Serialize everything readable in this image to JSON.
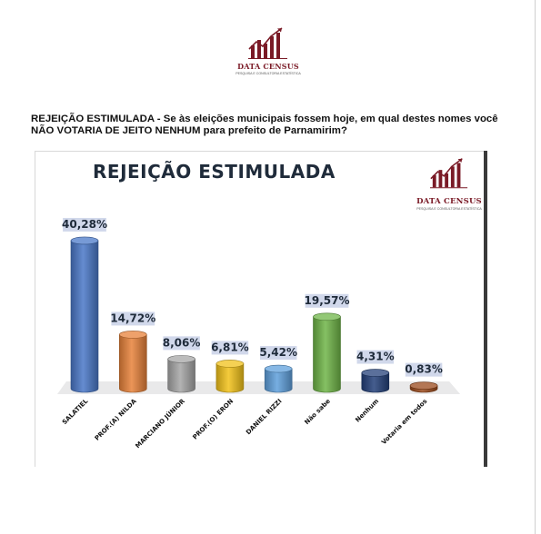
{
  "header": {
    "logo_name": "DATA CENSUS",
    "logo_tagline": "PESQUISA E CONSULTORIA ESTATÍSTICA",
    "logo_colors": {
      "bars": "#7a1a26",
      "arrow": "#7a1a26"
    }
  },
  "question": {
    "text": "REJEIÇÃO ESTIMULADA - Se às eleições municipais fossem hoje, em qual destes nomes você NÃO VOTARIA DE JEITO NENHUM para prefeito de Parnamirim?"
  },
  "chart_data": {
    "type": "bar",
    "title": "REJEIÇÃO ESTIMULADA",
    "categories": [
      "SALATIEL",
      "PROF.(A) NILDA",
      "MARCIANO JÚNIOR",
      "PROF.(O) ERON",
      "DANIEL RIZZI",
      "Não sabe",
      "Nenhum",
      "Votaria em todos"
    ],
    "values": [
      40.28,
      14.72,
      8.06,
      6.81,
      5.42,
      19.57,
      4.31,
      0.83
    ],
    "value_labels": [
      "40,28%",
      "14,72%",
      "8,06%",
      "6,81%",
      "5,42%",
      "19,57%",
      "4,31%",
      "0,83%"
    ],
    "colors": [
      "#4a78c8",
      "#e8823a",
      "#a6a6a6",
      "#f2c21a",
      "#5fa0dc",
      "#6fb548",
      "#24407a",
      "#9b4a1c"
    ],
    "bar_shape": "cylinder",
    "ylim": [
      0,
      42
    ],
    "xlabel": "",
    "ylabel": "",
    "grid": false,
    "legend": "none"
  }
}
